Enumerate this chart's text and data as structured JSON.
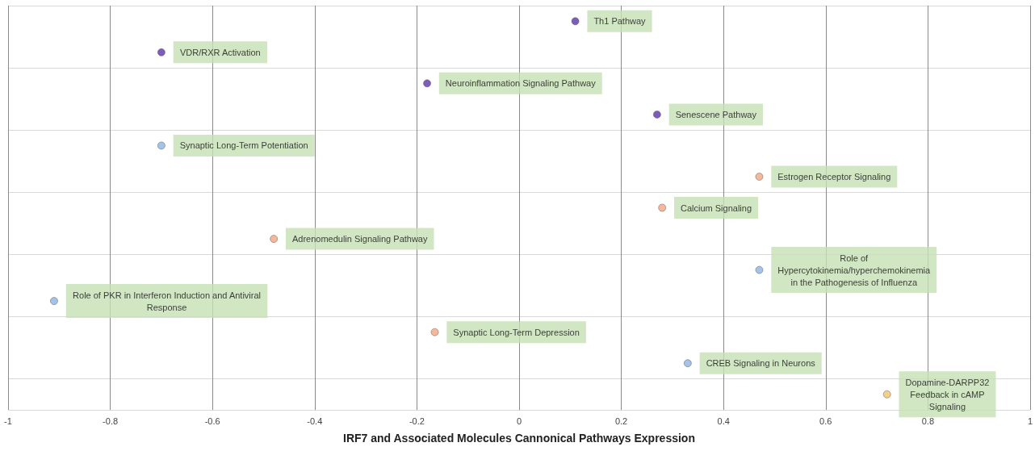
{
  "chart_data": {
    "type": "scatter",
    "xlabel": "IRF7 and Associated Molecules Cannonical Pathways Expression",
    "orientation": "horizontal",
    "categories": [
      null,
      null,
      null,
      null,
      null,
      null,
      null,
      null,
      null,
      null,
      null,
      null,
      null
    ],
    "values": [
      0.11,
      -0.7,
      -0.18,
      0.27,
      -0.7,
      0.47,
      0.28,
      -0.48,
      0.47,
      -0.91,
      -0.165,
      0.33,
      0.72
    ],
    "colors": [
      "#5b35ad",
      "#5b35ad",
      "#5b35ad",
      "#5b35ad",
      "#8db4e2",
      "#f4a582",
      "#f4a582",
      "#f4a582",
      "#8db4e2",
      "#8db4e2",
      "#f4a582",
      "#8db4e2",
      "#f2c46d"
    ],
    "value_labels": [
      "Th1 Pathway",
      "VDR/RXR Activation",
      "Neuroinflammation Signaling Pathway",
      "Senescene Pathway",
      "Synaptic Long-Term Potentiation",
      "Estrogen Receptor Signaling",
      "Calcium Signaling",
      "Adrenomedulin Signaling Pathway",
      "Role of\nHypercytokinemia/hyperchemokinemia\nin the Pathogenesis of Influenza",
      "Role of PKR in Interferon Induction and Antiviral\nResponse",
      "Synaptic Long-Term Depression",
      "CREB Signaling in Neurons",
      "Dopamine-DARPP32\nFeedback in cAMP\nSignaling"
    ],
    "xlim": [
      -1,
      1
    ],
    "xticks": [
      -1,
      -0.8,
      -0.6,
      -0.4,
      -0.2,
      0,
      0.2,
      0.4,
      0.6,
      0.8,
      1
    ],
    "tick_labels": "x",
    "grid": true,
    "marker": "circle"
  }
}
